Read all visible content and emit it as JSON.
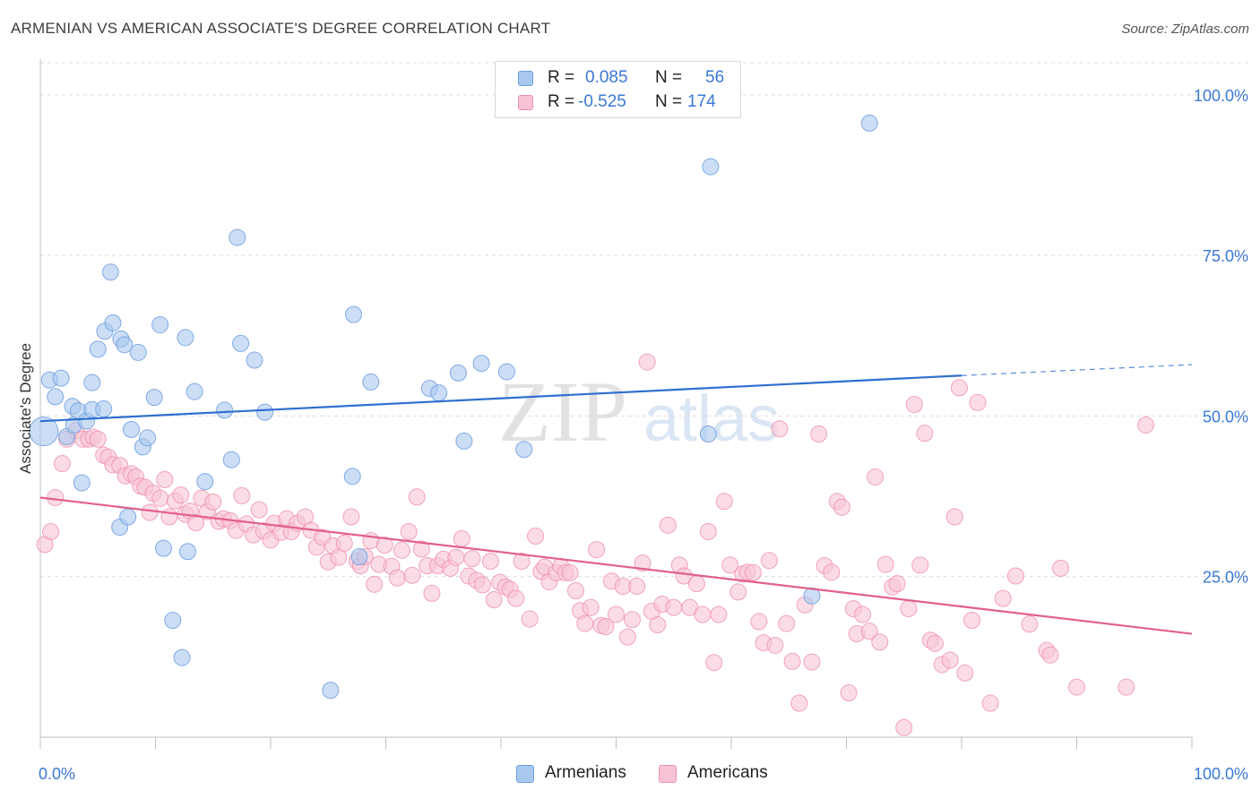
{
  "header": {
    "title": "ARMENIAN VS AMERICAN ASSOCIATE'S DEGREE CORRELATION CHART",
    "source": "Source: ZipAtlas.com"
  },
  "watermark": {
    "zip": "ZIP",
    "atlas": "atlas"
  },
  "legend": {
    "rows": [
      {
        "r_label": "R =",
        "r_value": "0.085",
        "n_label": "N =",
        "n_value": "56",
        "color": "#a9c8ee",
        "border": "#6e9ee0"
      },
      {
        "r_label": "R =",
        "r_value": "-0.525",
        "n_label": "N =",
        "n_value": "174",
        "color": "#f8c4d4",
        "border": "#ee8fae"
      }
    ],
    "bottom": [
      {
        "label": "Armenians",
        "color": "#a9c8ee",
        "border": "#6e9ee0"
      },
      {
        "label": "Americans",
        "color": "#f8c4d4",
        "border": "#ee8fae"
      }
    ]
  },
  "chart_data": {
    "type": "scatter",
    "title": "ARMENIAN VS AMERICAN ASSOCIATE'S DEGREE CORRELATION CHART",
    "xlabel": "",
    "ylabel": "Associate's Degree",
    "xlim": [
      0,
      100
    ],
    "ylim": [
      0,
      105
    ],
    "x_tick_labels": {
      "left": "0.0%",
      "right": "100.0%"
    },
    "y_ticks": [
      {
        "value": 25,
        "label": "25.0%"
      },
      {
        "value": 50,
        "label": "50.0%"
      },
      {
        "value": 75,
        "label": "75.0%"
      },
      {
        "value": 100,
        "label": "100.0%"
      }
    ],
    "grid": true,
    "legend_position": "top-center",
    "series": [
      {
        "name": "Armenians",
        "color": "#a9c8ee",
        "stroke": "#6e9ee0",
        "line_color": "#2f6fd0",
        "r": 0.085,
        "n": 56,
        "trend": {
          "x0": 0,
          "y0": 49.2,
          "x1": 80,
          "y1": 56.3,
          "dashed_to_x": 100,
          "dashed_to_y": 58.0
        },
        "points": [
          [
            0.3,
            47.6
          ],
          [
            0.8,
            55.6
          ],
          [
            1.3,
            53.0
          ],
          [
            1.8,
            55.9
          ],
          [
            2.3,
            46.8
          ],
          [
            2.8,
            51.5
          ],
          [
            2.9,
            48.6
          ],
          [
            3.3,
            50.8
          ],
          [
            3.6,
            39.6
          ],
          [
            4.0,
            49.2
          ],
          [
            4.5,
            51.0
          ],
          [
            4.5,
            55.2
          ],
          [
            5.0,
            60.4
          ],
          [
            5.5,
            51.1
          ],
          [
            5.6,
            63.2
          ],
          [
            6.1,
            72.4
          ],
          [
            6.3,
            64.5
          ],
          [
            6.9,
            32.7
          ],
          [
            7.0,
            62.0
          ],
          [
            7.3,
            61.1
          ],
          [
            7.6,
            34.3
          ],
          [
            7.9,
            47.9
          ],
          [
            8.5,
            59.9
          ],
          [
            8.9,
            45.2
          ],
          [
            9.3,
            46.6
          ],
          [
            9.9,
            52.9
          ],
          [
            10.4,
            64.2
          ],
          [
            10.7,
            29.4
          ],
          [
            11.5,
            18.2
          ],
          [
            12.3,
            12.4
          ],
          [
            12.6,
            62.2
          ],
          [
            12.8,
            28.9
          ],
          [
            13.4,
            53.8
          ],
          [
            14.3,
            39.8
          ],
          [
            16.0,
            50.9
          ],
          [
            16.6,
            43.2
          ],
          [
            17.1,
            77.8
          ],
          [
            17.4,
            61.3
          ],
          [
            18.6,
            58.7
          ],
          [
            19.5,
            50.6
          ],
          [
            25.2,
            7.3
          ],
          [
            27.1,
            40.6
          ],
          [
            27.2,
            65.8
          ],
          [
            27.7,
            28.1
          ],
          [
            28.7,
            55.3
          ],
          [
            33.8,
            54.3
          ],
          [
            34.6,
            53.6
          ],
          [
            36.3,
            56.7
          ],
          [
            36.8,
            46.1
          ],
          [
            38.3,
            58.2
          ],
          [
            40.5,
            56.9
          ],
          [
            42.0,
            44.8
          ],
          [
            58.0,
            47.2
          ],
          [
            58.2,
            88.8
          ],
          [
            67.0,
            22.0
          ],
          [
            72.0,
            95.6
          ]
        ]
      },
      {
        "name": "Americans",
        "color": "#f8c4d4",
        "stroke": "#ee8fae",
        "line_color": "#e2608c",
        "r": -0.525,
        "n": 174,
        "trend": {
          "x0": 0,
          "y0": 37.3,
          "x1": 100,
          "y1": 16.1
        },
        "points": [
          [
            0.4,
            30.0
          ],
          [
            0.9,
            32.0
          ],
          [
            1.3,
            37.3
          ],
          [
            1.9,
            42.6
          ],
          [
            2.3,
            46.4
          ],
          [
            3.1,
            47.7
          ],
          [
            3.7,
            46.4
          ],
          [
            4.2,
            46.4
          ],
          [
            4.6,
            46.7
          ],
          [
            5.0,
            46.4
          ],
          [
            5.5,
            43.9
          ],
          [
            5.9,
            43.6
          ],
          [
            6.3,
            42.4
          ],
          [
            6.9,
            42.3
          ],
          [
            7.4,
            40.7
          ],
          [
            7.9,
            41.0
          ],
          [
            8.3,
            40.5
          ],
          [
            8.7,
            39.1
          ],
          [
            9.1,
            38.9
          ],
          [
            9.5,
            35.0
          ],
          [
            9.8,
            38.0
          ],
          [
            10.4,
            37.2
          ],
          [
            10.8,
            40.1
          ],
          [
            11.2,
            34.3
          ],
          [
            11.7,
            36.8
          ],
          [
            12.2,
            37.7
          ],
          [
            12.6,
            34.7
          ],
          [
            13.0,
            35.2
          ],
          [
            13.5,
            33.4
          ],
          [
            14.0,
            37.2
          ],
          [
            14.5,
            35.1
          ],
          [
            15.0,
            36.6
          ],
          [
            15.5,
            33.6
          ],
          [
            15.9,
            34.0
          ],
          [
            16.5,
            33.7
          ],
          [
            17.0,
            32.2
          ],
          [
            17.5,
            37.6
          ],
          [
            17.9,
            33.2
          ],
          [
            18.5,
            31.5
          ],
          [
            19.0,
            35.4
          ],
          [
            19.4,
            32.1
          ],
          [
            20.0,
            30.7
          ],
          [
            20.3,
            33.3
          ],
          [
            20.9,
            31.9
          ],
          [
            21.4,
            34.0
          ],
          [
            21.8,
            32.0
          ],
          [
            22.3,
            33.3
          ],
          [
            23.0,
            34.3
          ],
          [
            23.5,
            32.2
          ],
          [
            24.0,
            29.6
          ],
          [
            24.5,
            31.1
          ],
          [
            25.0,
            27.3
          ],
          [
            25.4,
            29.8
          ],
          [
            25.9,
            28.0
          ],
          [
            26.4,
            30.2
          ],
          [
            27.0,
            34.3
          ],
          [
            27.5,
            27.4
          ],
          [
            27.8,
            26.7
          ],
          [
            28.2,
            28.1
          ],
          [
            28.7,
            30.6
          ],
          [
            29.0,
            23.8
          ],
          [
            29.4,
            26.9
          ],
          [
            29.9,
            29.9
          ],
          [
            30.5,
            26.6
          ],
          [
            31.0,
            24.8
          ],
          [
            31.4,
            29.1
          ],
          [
            32.0,
            32.0
          ],
          [
            32.3,
            25.2
          ],
          [
            32.7,
            37.4
          ],
          [
            33.1,
            29.3
          ],
          [
            33.6,
            26.7
          ],
          [
            34.0,
            22.4
          ],
          [
            34.5,
            26.7
          ],
          [
            35.0,
            27.7
          ],
          [
            35.6,
            26.3
          ],
          [
            36.1,
            28.0
          ],
          [
            36.6,
            30.9
          ],
          [
            37.2,
            25.1
          ],
          [
            37.5,
            27.8
          ],
          [
            37.9,
            24.4
          ],
          [
            38.4,
            23.7
          ],
          [
            39.1,
            27.4
          ],
          [
            39.4,
            21.4
          ],
          [
            39.9,
            24.1
          ],
          [
            40.4,
            23.4
          ],
          [
            40.8,
            23.0
          ],
          [
            41.3,
            21.6
          ],
          [
            41.8,
            27.4
          ],
          [
            42.5,
            18.4
          ],
          [
            43.0,
            31.3
          ],
          [
            43.5,
            25.8
          ],
          [
            43.8,
            26.5
          ],
          [
            44.2,
            24.2
          ],
          [
            44.8,
            25.6
          ],
          [
            45.2,
            26.6
          ],
          [
            45.6,
            25.6
          ],
          [
            46.0,
            25.6
          ],
          [
            46.5,
            22.8
          ],
          [
            46.9,
            19.7
          ],
          [
            47.3,
            17.7
          ],
          [
            47.8,
            20.2
          ],
          [
            48.3,
            29.2
          ],
          [
            48.7,
            17.4
          ],
          [
            49.1,
            17.2
          ],
          [
            49.6,
            24.3
          ],
          [
            50.0,
            19.1
          ],
          [
            50.6,
            23.5
          ],
          [
            51.0,
            15.6
          ],
          [
            51.4,
            18.3
          ],
          [
            51.8,
            23.5
          ],
          [
            52.3,
            27.1
          ],
          [
            52.7,
            58.4
          ],
          [
            53.1,
            19.6
          ],
          [
            53.6,
            17.5
          ],
          [
            54.0,
            20.7
          ],
          [
            54.5,
            33.0
          ],
          [
            55.0,
            20.2
          ],
          [
            55.5,
            26.8
          ],
          [
            55.9,
            25.1
          ],
          [
            56.4,
            20.2
          ],
          [
            57.0,
            23.9
          ],
          [
            57.5,
            19.1
          ],
          [
            58.0,
            32.0
          ],
          [
            58.5,
            11.6
          ],
          [
            58.9,
            19.1
          ],
          [
            59.4,
            36.7
          ],
          [
            59.9,
            26.8
          ],
          [
            60.6,
            22.6
          ],
          [
            61.0,
            25.4
          ],
          [
            61.4,
            25.7
          ],
          [
            61.9,
            25.6
          ],
          [
            62.4,
            18.0
          ],
          [
            62.8,
            14.7
          ],
          [
            63.3,
            27.5
          ],
          [
            63.8,
            14.3
          ],
          [
            64.2,
            48.0
          ],
          [
            64.8,
            17.7
          ],
          [
            65.3,
            11.8
          ],
          [
            65.9,
            5.3
          ],
          [
            66.4,
            20.6
          ],
          [
            67.0,
            11.7
          ],
          [
            67.6,
            47.2
          ],
          [
            68.1,
            26.7
          ],
          [
            68.7,
            25.7
          ],
          [
            69.2,
            36.7
          ],
          [
            69.6,
            35.8
          ],
          [
            70.2,
            6.9
          ],
          [
            70.6,
            20.0
          ],
          [
            70.9,
            16.1
          ],
          [
            71.4,
            19.1
          ],
          [
            72.0,
            16.5
          ],
          [
            72.5,
            40.5
          ],
          [
            72.9,
            14.8
          ],
          [
            73.4,
            26.9
          ],
          [
            74.0,
            23.4
          ],
          [
            74.4,
            23.9
          ],
          [
            75.0,
            1.5
          ],
          [
            75.4,
            20.0
          ],
          [
            75.9,
            51.8
          ],
          [
            76.4,
            26.8
          ],
          [
            76.8,
            47.3
          ],
          [
            77.3,
            15.1
          ],
          [
            77.7,
            14.6
          ],
          [
            78.3,
            11.3
          ],
          [
            79.0,
            12.0
          ],
          [
            79.4,
            34.3
          ],
          [
            79.8,
            54.4
          ],
          [
            80.3,
            10.0
          ],
          [
            80.9,
            18.2
          ],
          [
            81.4,
            52.1
          ],
          [
            82.5,
            5.3
          ],
          [
            83.6,
            21.6
          ],
          [
            84.7,
            25.1
          ],
          [
            85.9,
            17.6
          ],
          [
            87.4,
            13.5
          ],
          [
            87.7,
            12.8
          ],
          [
            88.6,
            26.3
          ],
          [
            90.0,
            7.8
          ],
          [
            94.3,
            7.8
          ],
          [
            96.0,
            48.6
          ]
        ]
      }
    ]
  }
}
